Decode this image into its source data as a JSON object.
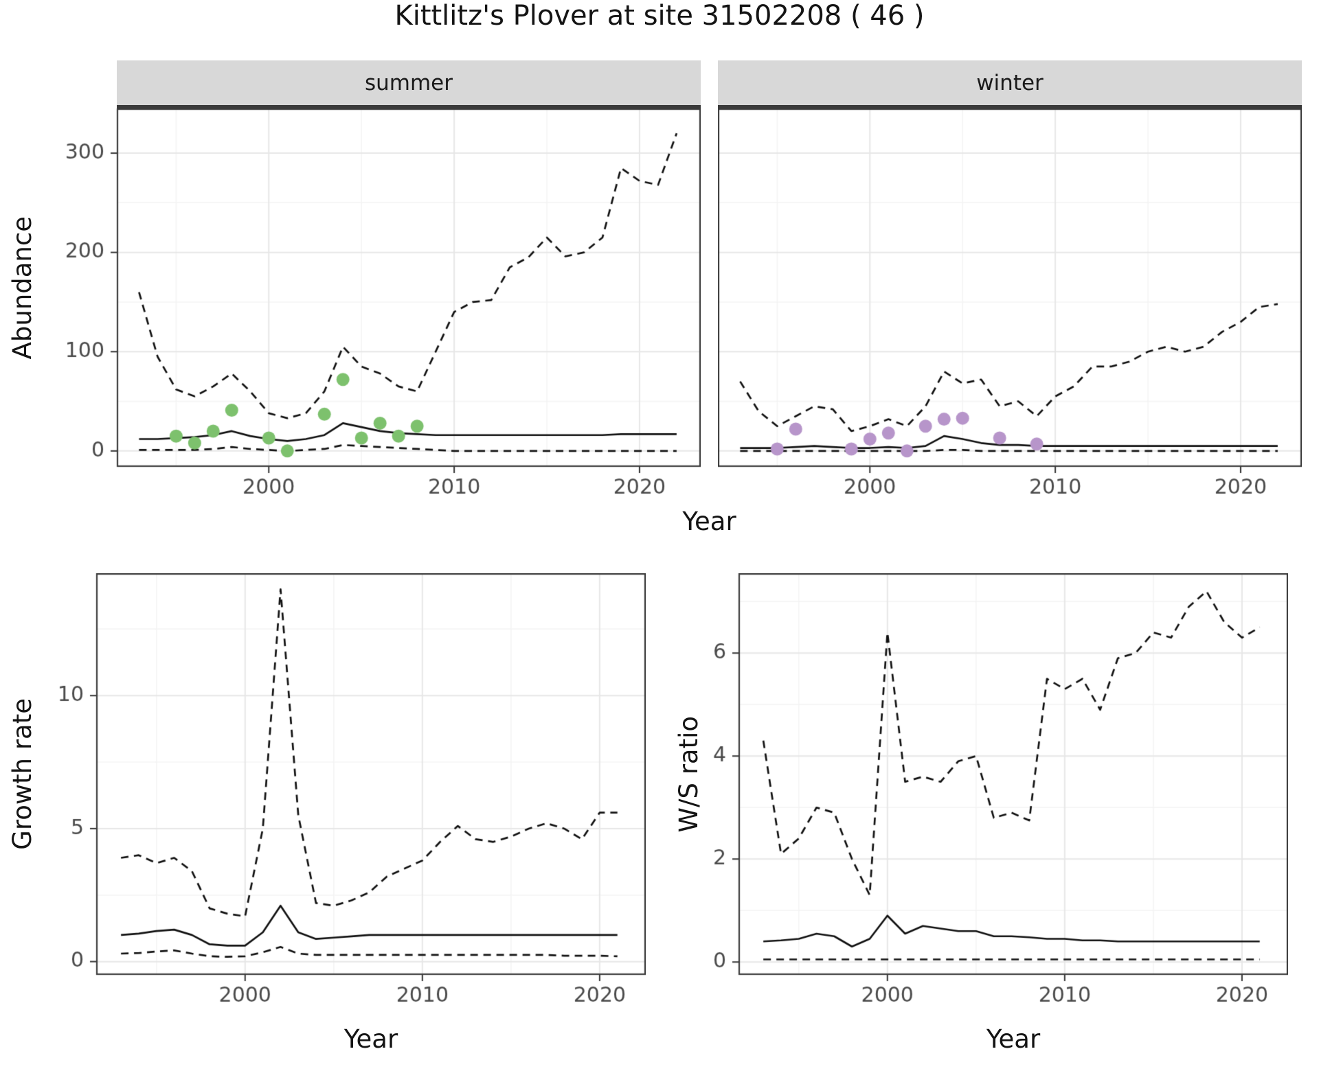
{
  "title": "Kittlitz's Plover at site 31502208 ( 46 )",
  "colors": {
    "line": "#111111",
    "summer_points": "#7dc16d",
    "winter_points": "#b795ca",
    "strip_bg": "#d8d8d8",
    "grid_major": "#e7e7e7",
    "grid_minor": "#f4f4f4",
    "panel_border": "#3c3c3c",
    "tick_label": "#4a4a4a"
  },
  "chart_data": [
    {
      "id": "abundance-summer",
      "type": "line",
      "facet": "summer",
      "xlabel": "Year",
      "ylabel": "Abundance",
      "xlim": [
        1991.8,
        2023.3
      ],
      "ylim": [
        -16,
        345
      ],
      "xticks": [
        2000,
        2010,
        2020
      ],
      "yticks": [
        0,
        100,
        200,
        300
      ],
      "x": [
        1993,
        1994,
        1995,
        1996,
        1997,
        1998,
        1999,
        2000,
        2001,
        2002,
        2003,
        2004,
        2005,
        2006,
        2007,
        2008,
        2009,
        2010,
        2011,
        2012,
        2013,
        2014,
        2015,
        2016,
        2017,
        2018,
        2019,
        2020,
        2021,
        2022
      ],
      "series": [
        {
          "name": "upper-ci",
          "style": "dashed",
          "y": [
            160,
            95,
            62,
            55,
            65,
            78,
            60,
            38,
            33,
            38,
            60,
            105,
            85,
            78,
            65,
            60,
            100,
            140,
            150,
            152,
            185,
            195,
            215,
            196,
            200,
            215,
            285,
            272,
            268,
            320
          ]
        },
        {
          "name": "lower-ci",
          "style": "dashed",
          "y": [
            1,
            1,
            1,
            1,
            2,
            4,
            2,
            1,
            0,
            1,
            2,
            6,
            5,
            4,
            3,
            2,
            1,
            0,
            0,
            0,
            0,
            0,
            0,
            0,
            0,
            0,
            0,
            0,
            0,
            0
          ]
        },
        {
          "name": "median",
          "style": "solid",
          "y": [
            12,
            12,
            13,
            14,
            16,
            20,
            15,
            12,
            10,
            12,
            16,
            28,
            24,
            20,
            18,
            17,
            16,
            16,
            16,
            16,
            16,
            16,
            16,
            16,
            16,
            16,
            17,
            17,
            17,
            17
          ]
        },
        {
          "name": "observations",
          "style": "points",
          "color": "#7dc16d",
          "x": [
            1995,
            1996,
            1997,
            1998,
            2000,
            2001,
            2003,
            2004,
            2005,
            2006,
            2007,
            2008
          ],
          "y": [
            15,
            8,
            20,
            41,
            13,
            0,
            37,
            72,
            13,
            28,
            15,
            25
          ]
        }
      ]
    },
    {
      "id": "abundance-winter",
      "type": "line",
      "facet": "winter",
      "xlabel": "Year",
      "ylabel": "Abundance",
      "xlim": [
        1991.8,
        2023.3
      ],
      "ylim": [
        -16,
        345
      ],
      "xticks": [
        2000,
        2010,
        2020
      ],
      "yticks": [
        0,
        100,
        200,
        300
      ],
      "x": [
        1993,
        1994,
        1995,
        1996,
        1997,
        1998,
        1999,
        2000,
        2001,
        2002,
        2003,
        2004,
        2005,
        2006,
        2007,
        2008,
        2009,
        2010,
        2011,
        2012,
        2013,
        2014,
        2015,
        2016,
        2017,
        2018,
        2019,
        2020,
        2021,
        2022
      ],
      "series": [
        {
          "name": "upper-ci",
          "style": "dashed",
          "y": [
            70,
            40,
            25,
            35,
            45,
            42,
            20,
            25,
            32,
            25,
            45,
            80,
            68,
            72,
            45,
            50,
            35,
            55,
            65,
            85,
            85,
            90,
            100,
            105,
            100,
            105,
            120,
            130,
            145,
            148
          ]
        },
        {
          "name": "lower-ci",
          "style": "dashed",
          "y": [
            0,
            0,
            0,
            0,
            0,
            0,
            0,
            0,
            0,
            0,
            0,
            1,
            1,
            0,
            0,
            0,
            0,
            0,
            0,
            0,
            0,
            0,
            0,
            0,
            0,
            0,
            0,
            0,
            0,
            0
          ]
        },
        {
          "name": "median",
          "style": "solid",
          "y": [
            3,
            3,
            3,
            4,
            5,
            4,
            3,
            3,
            4,
            3,
            5,
            15,
            12,
            8,
            6,
            6,
            5,
            5,
            5,
            5,
            5,
            5,
            5,
            5,
            5,
            5,
            5,
            5,
            5,
            5
          ]
        },
        {
          "name": "observations",
          "style": "points",
          "color": "#b795ca",
          "x": [
            1995,
            1996,
            1999,
            2000,
            2001,
            2002,
            2003,
            2004,
            2005,
            2007,
            2009
          ],
          "y": [
            2,
            22,
            2,
            12,
            18,
            0,
            25,
            32,
            33,
            13,
            7
          ]
        }
      ]
    },
    {
      "id": "growth-rate",
      "type": "line",
      "xlabel": "Year",
      "ylabel": "Growth rate",
      "xlim": [
        1991.6,
        2022.6
      ],
      "ylim": [
        -0.5,
        14.6
      ],
      "xticks": [
        2000,
        2010,
        2020
      ],
      "yticks": [
        0,
        5,
        10
      ],
      "x": [
        1993,
        1994,
        1995,
        1996,
        1997,
        1998,
        1999,
        2000,
        2001,
        2002,
        2003,
        2004,
        2005,
        2006,
        2007,
        2008,
        2009,
        2010,
        2011,
        2012,
        2013,
        2014,
        2015,
        2016,
        2017,
        2018,
        2019,
        2020,
        2021
      ],
      "series": [
        {
          "name": "upper-ci",
          "style": "dashed",
          "y": [
            3.9,
            4.0,
            3.7,
            3.9,
            3.4,
            2.0,
            1.8,
            1.7,
            5.0,
            14.0,
            5.5,
            2.2,
            2.1,
            2.3,
            2.6,
            3.2,
            3.5,
            3.8,
            4.5,
            5.1,
            4.6,
            4.5,
            4.7,
            5.0,
            5.2,
            5.0,
            4.6,
            5.6,
            5.6
          ]
        },
        {
          "name": "lower-ci",
          "style": "dashed",
          "y": [
            0.3,
            0.32,
            0.38,
            0.42,
            0.3,
            0.2,
            0.18,
            0.2,
            0.35,
            0.55,
            0.3,
            0.25,
            0.25,
            0.25,
            0.25,
            0.25,
            0.25,
            0.25,
            0.25,
            0.25,
            0.25,
            0.25,
            0.25,
            0.25,
            0.25,
            0.22,
            0.22,
            0.22,
            0.2
          ]
        },
        {
          "name": "median",
          "style": "solid",
          "y": [
            1.0,
            1.05,
            1.15,
            1.2,
            1.0,
            0.65,
            0.6,
            0.6,
            1.1,
            2.1,
            1.1,
            0.85,
            0.9,
            0.95,
            1.0,
            1.0,
            1.0,
            1.0,
            1.0,
            1.0,
            1.0,
            1.0,
            1.0,
            1.0,
            1.0,
            1.0,
            1.0,
            1.0,
            1.0
          ]
        }
      ]
    },
    {
      "id": "ws-ratio",
      "type": "line",
      "xlabel": "Year",
      "ylabel": "W/S ratio",
      "xlim": [
        1991.6,
        2022.6
      ],
      "ylim": [
        -0.25,
        7.55
      ],
      "xticks": [
        2000,
        2010,
        2020
      ],
      "yticks": [
        0,
        2,
        4,
        6
      ],
      "x": [
        1993,
        1994,
        1995,
        1996,
        1997,
        1998,
        1999,
        2000,
        2001,
        2002,
        2003,
        2004,
        2005,
        2006,
        2007,
        2008,
        2009,
        2010,
        2011,
        2012,
        2013,
        2014,
        2015,
        2016,
        2017,
        2018,
        2019,
        2020,
        2021
      ],
      "series": [
        {
          "name": "upper-ci",
          "style": "dashed",
          "y": [
            4.3,
            2.1,
            2.4,
            3.0,
            2.9,
            2.0,
            1.3,
            6.4,
            3.5,
            3.6,
            3.5,
            3.9,
            4.0,
            2.8,
            2.9,
            2.75,
            5.5,
            5.3,
            5.5,
            4.9,
            5.9,
            6.0,
            6.4,
            6.3,
            6.9,
            7.2,
            6.6,
            6.3,
            6.5
          ]
        },
        {
          "name": "lower-ci",
          "style": "dashed",
          "y": [
            0.05,
            0.05,
            0.05,
            0.05,
            0.05,
            0.05,
            0.05,
            0.05,
            0.05,
            0.05,
            0.05,
            0.05,
            0.05,
            0.05,
            0.05,
            0.05,
            0.05,
            0.05,
            0.05,
            0.05,
            0.05,
            0.05,
            0.05,
            0.05,
            0.05,
            0.05,
            0.05,
            0.05,
            0.05
          ]
        },
        {
          "name": "median",
          "style": "solid",
          "y": [
            0.4,
            0.42,
            0.45,
            0.55,
            0.5,
            0.3,
            0.45,
            0.9,
            0.55,
            0.7,
            0.65,
            0.6,
            0.6,
            0.5,
            0.5,
            0.48,
            0.45,
            0.45,
            0.42,
            0.42,
            0.4,
            0.4,
            0.4,
            0.4,
            0.4,
            0.4,
            0.4,
            0.4,
            0.4
          ]
        }
      ]
    }
  ]
}
